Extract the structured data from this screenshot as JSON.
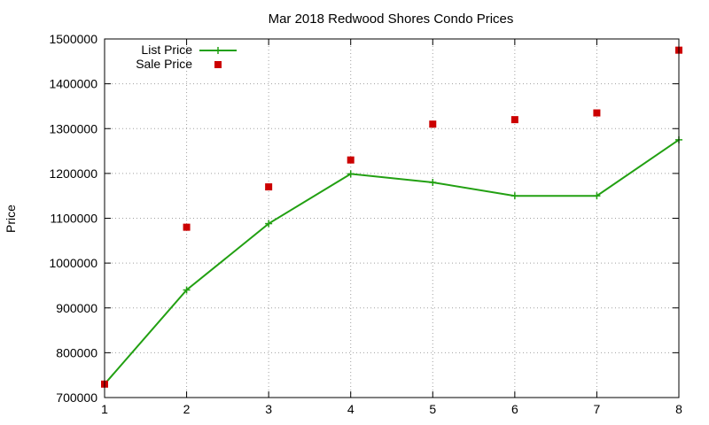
{
  "chart_data": {
    "type": "line",
    "title": "Mar 2018 Redwood Shores Condo Prices",
    "xlabel": "",
    "ylabel": "Price",
    "x": [
      1,
      2,
      3,
      4,
      5,
      6,
      7,
      8
    ],
    "xlim": [
      1,
      8
    ],
    "ylim": [
      700000,
      1500000
    ],
    "yticks": [
      700000,
      800000,
      900000,
      1000000,
      1100000,
      1200000,
      1300000,
      1400000,
      1500000
    ],
    "xticks": [
      1,
      2,
      3,
      4,
      5,
      6,
      7,
      8
    ],
    "grid": true,
    "legend_position": "top-left",
    "series": [
      {
        "name": "List Price",
        "style": "line-points",
        "color": "#22a012",
        "values": [
          730000,
          940000,
          1088000,
          1199000,
          1180000,
          1150000,
          1150000,
          1275000
        ]
      },
      {
        "name": "Sale Price",
        "style": "points",
        "color": "#cc0000",
        "values": [
          730000,
          1080000,
          1170000,
          1230000,
          1310000,
          1320000,
          1335000,
          1475000
        ]
      }
    ]
  }
}
